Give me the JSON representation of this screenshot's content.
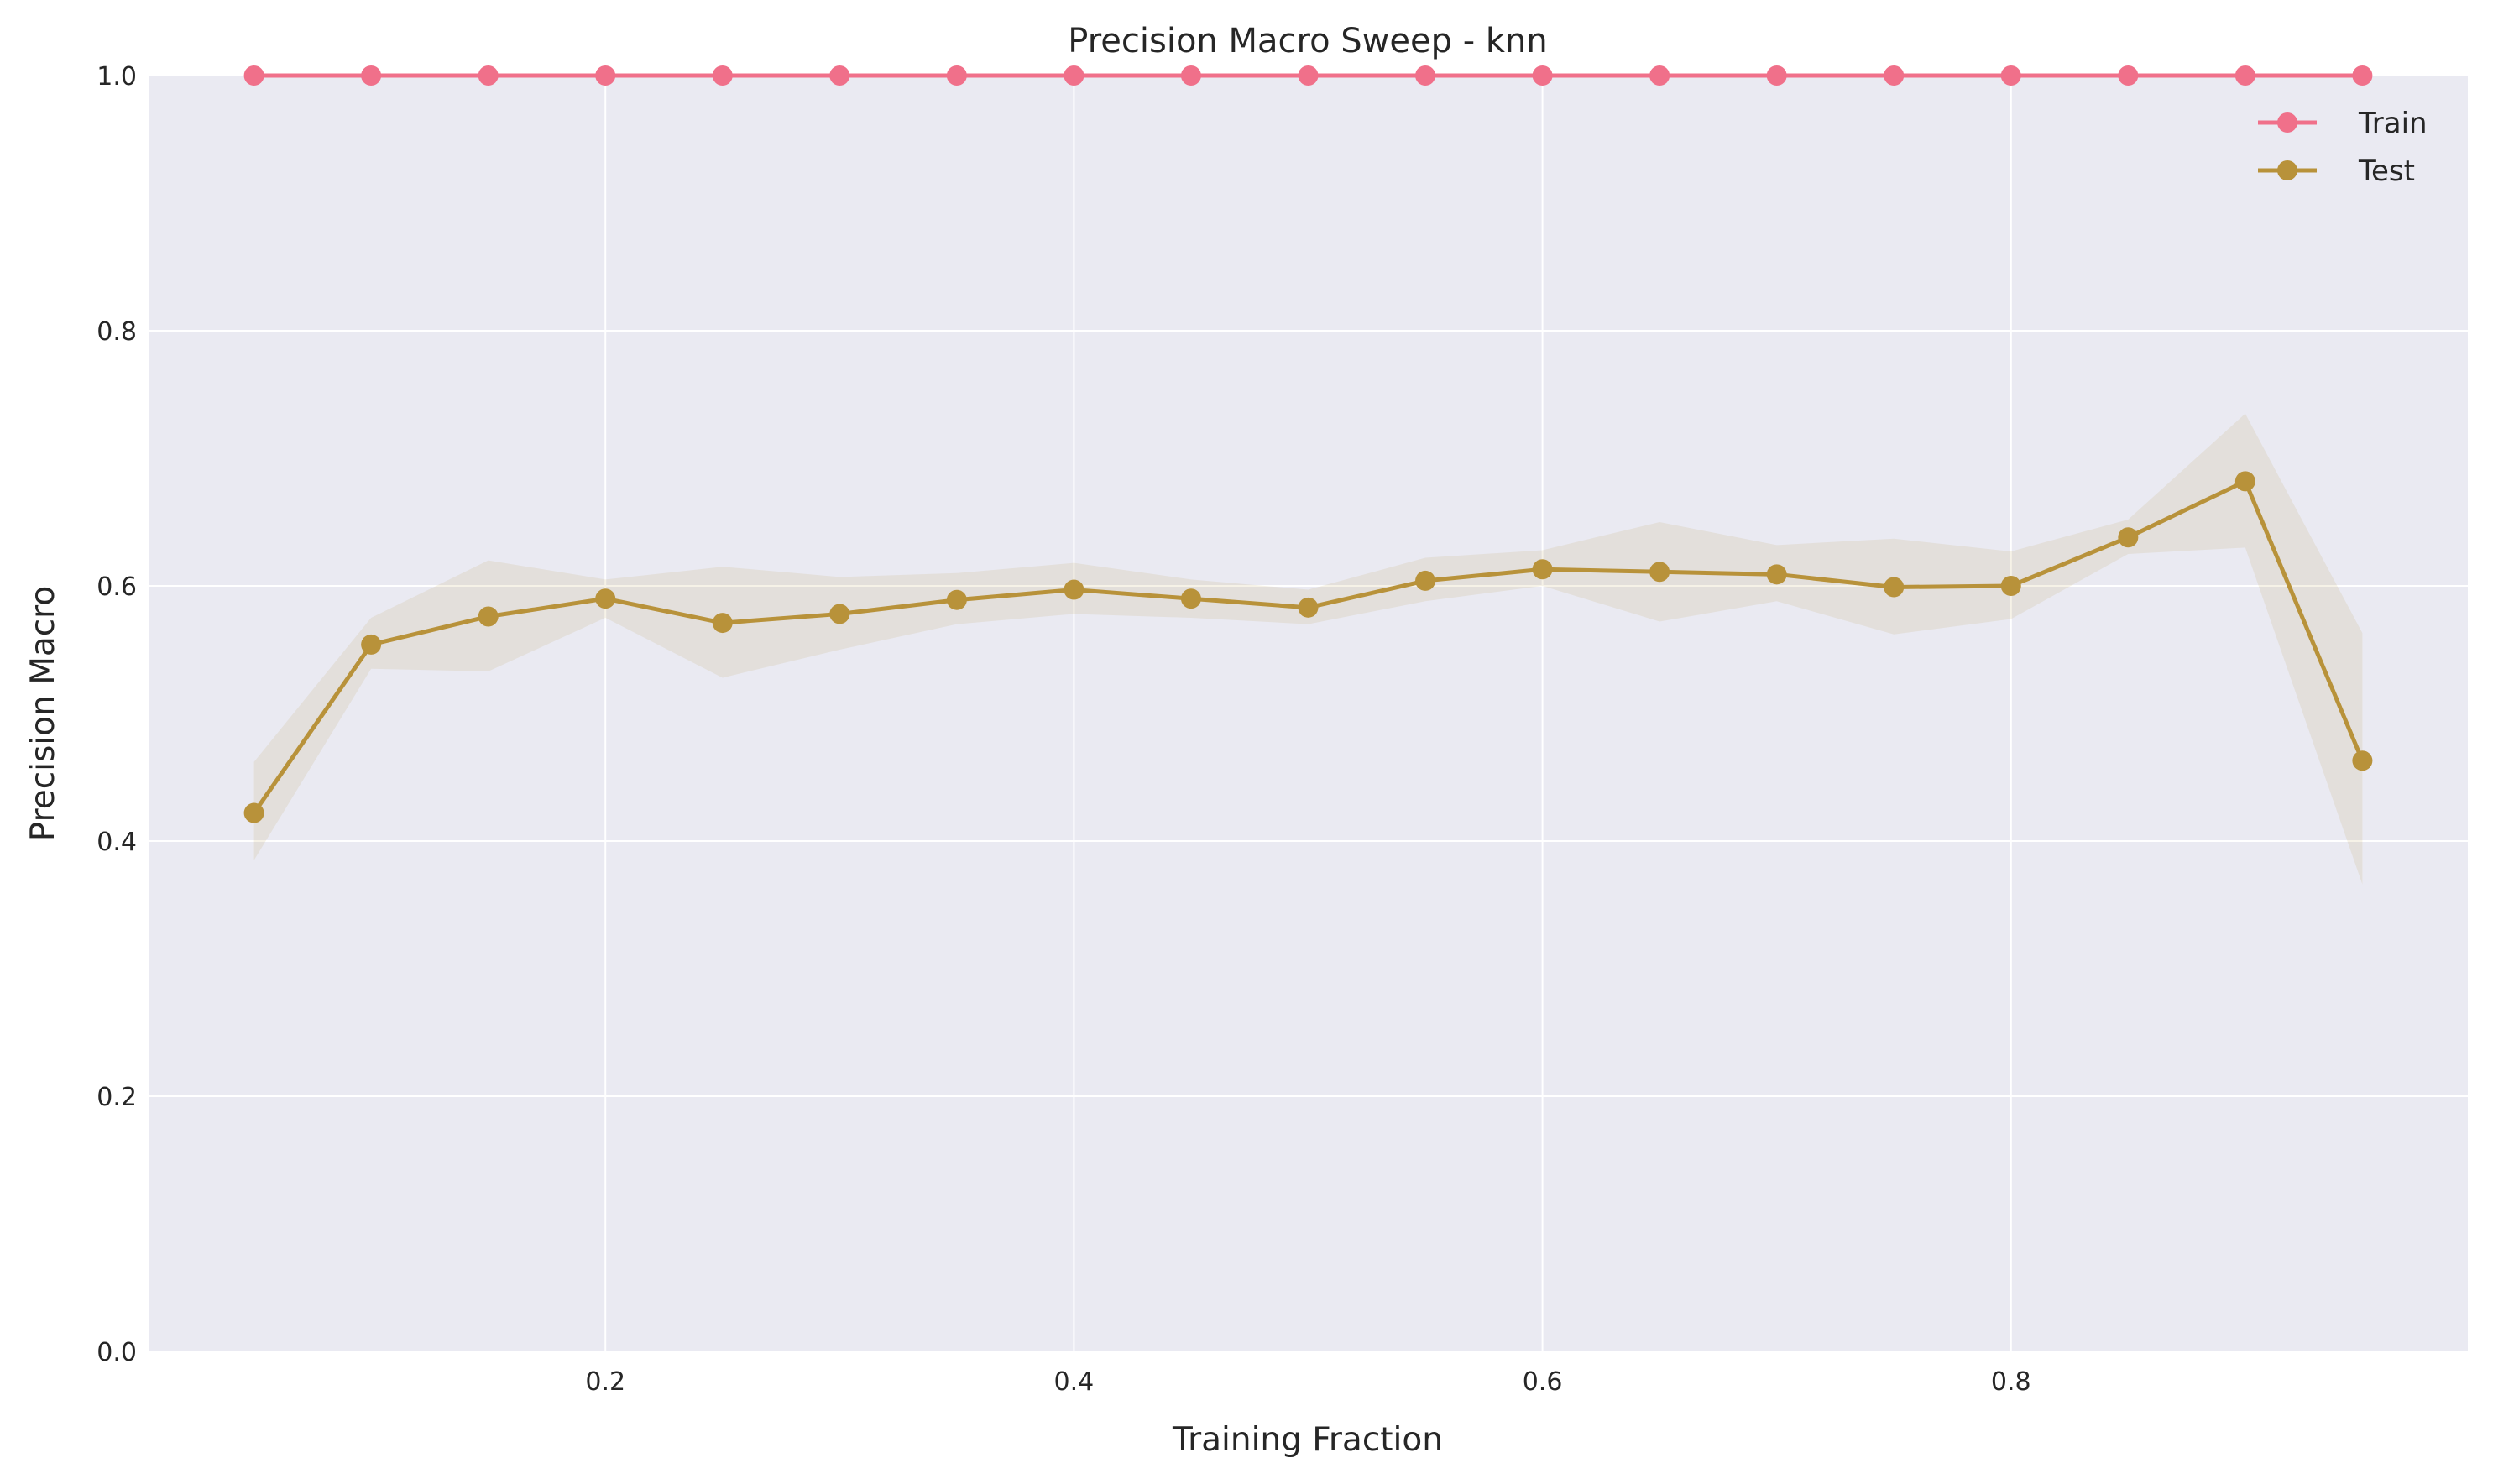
{
  "chart_data": {
    "type": "line",
    "title": "Precision Macro Sweep - knn",
    "xlabel": "Training Fraction",
    "ylabel": "Precision Macro",
    "xlim": [
      0.005,
      0.995
    ],
    "ylim": [
      0.0,
      1.0
    ],
    "xticks": [
      0.2,
      0.4,
      0.6,
      0.8
    ],
    "xtick_labels": [
      "0.2",
      "0.4",
      "0.6",
      "0.8"
    ],
    "yticks": [
      0.0,
      0.2,
      0.4,
      0.6,
      0.8,
      1.0
    ],
    "ytick_labels": [
      "0.0",
      "0.2",
      "0.4",
      "0.6",
      "0.8",
      "1.0"
    ],
    "grid": true,
    "legend_position": "top-right",
    "x": [
      0.05,
      0.1,
      0.15,
      0.2,
      0.25,
      0.3,
      0.35,
      0.4,
      0.45,
      0.5,
      0.55,
      0.6,
      0.65,
      0.7,
      0.75,
      0.8,
      0.85,
      0.9,
      0.95
    ],
    "series": [
      {
        "name": "Train",
        "color": "#f0708a",
        "values": [
          1.0,
          1.0,
          1.0,
          1.0,
          1.0,
          1.0,
          1.0,
          1.0,
          1.0,
          1.0,
          1.0,
          1.0,
          1.0,
          1.0,
          1.0,
          1.0,
          1.0,
          1.0,
          1.0
        ],
        "lower": [
          1.0,
          1.0,
          1.0,
          1.0,
          1.0,
          1.0,
          1.0,
          1.0,
          1.0,
          1.0,
          1.0,
          1.0,
          1.0,
          1.0,
          1.0,
          1.0,
          1.0,
          1.0,
          1.0
        ],
        "upper": [
          1.0,
          1.0,
          1.0,
          1.0,
          1.0,
          1.0,
          1.0,
          1.0,
          1.0,
          1.0,
          1.0,
          1.0,
          1.0,
          1.0,
          1.0,
          1.0,
          1.0,
          1.0,
          1.0
        ]
      },
      {
        "name": "Test",
        "color": "#b8923a",
        "values": [
          0.422,
          0.554,
          0.576,
          0.59,
          0.571,
          0.578,
          0.589,
          0.597,
          0.59,
          0.583,
          0.604,
          0.613,
          0.611,
          0.609,
          0.599,
          0.6,
          0.638,
          0.682,
          0.463
        ],
        "lower": [
          0.385,
          0.535,
          0.533,
          0.575,
          0.528,
          0.55,
          0.57,
          0.578,
          0.575,
          0.57,
          0.588,
          0.6,
          0.572,
          0.588,
          0.562,
          0.574,
          0.625,
          0.63,
          0.366
        ],
        "upper": [
          0.462,
          0.575,
          0.62,
          0.605,
          0.615,
          0.607,
          0.61,
          0.618,
          0.605,
          0.597,
          0.622,
          0.628,
          0.65,
          0.632,
          0.637,
          0.627,
          0.652,
          0.735,
          0.563
        ]
      }
    ]
  }
}
